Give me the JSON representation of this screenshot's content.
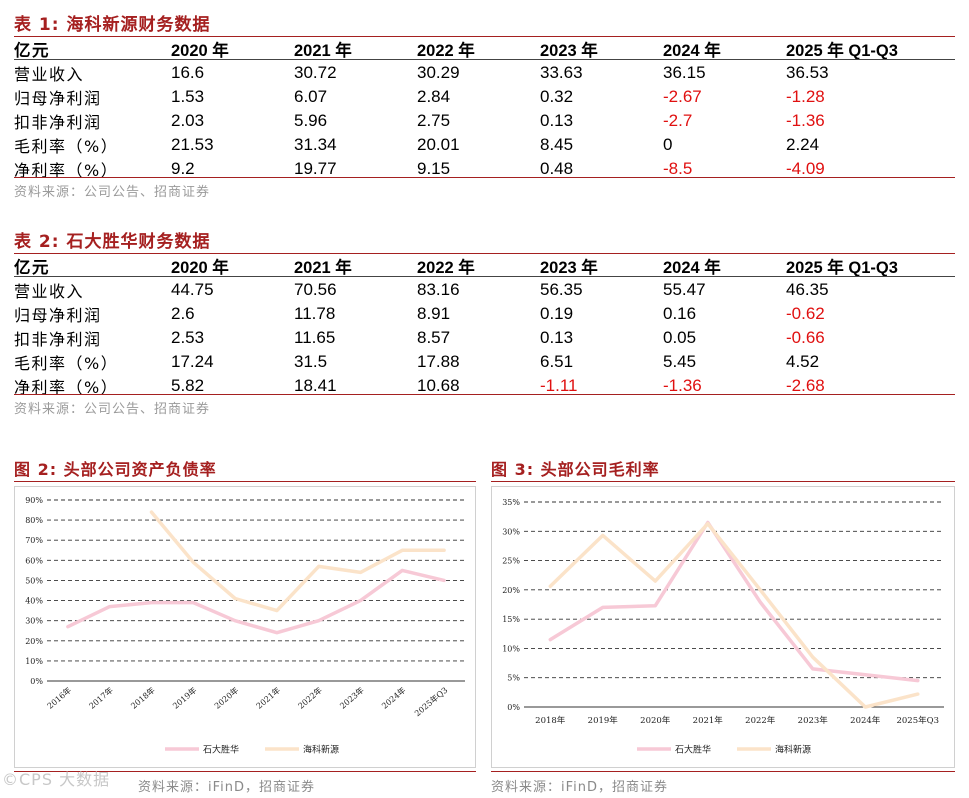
{
  "table1": {
    "title": "表 1:  海科新源财务数据",
    "headers": [
      "亿元",
      "2020 年",
      "2021 年",
      "2022 年",
      "2023 年",
      "2024 年",
      "2025 年 Q1-Q3"
    ],
    "rows": [
      {
        "label": "营业收入",
        "values": [
          "16.6",
          "30.72",
          "30.29",
          "33.63",
          "36.15",
          "36.53"
        ]
      },
      {
        "label": "归母净利润",
        "values": [
          "1.53",
          "6.07",
          "2.84",
          "0.32",
          "-2.67",
          "-1.28"
        ]
      },
      {
        "label": "扣非净利润",
        "values": [
          "2.03",
          "5.96",
          "2.75",
          "0.13",
          "-2.7",
          "-1.36"
        ]
      },
      {
        "label": "毛利率（%）",
        "values": [
          "21.53",
          "31.34",
          "20.01",
          "8.45",
          "0",
          "2.24"
        ]
      },
      {
        "label": "净利率（%）",
        "values": [
          "9.2",
          "19.77",
          "9.15",
          "0.48",
          "-8.5",
          "-4.09"
        ]
      }
    ],
    "source": "资料来源：公司公告、招商证券"
  },
  "table2": {
    "title": "表 2:  石大胜华财务数据",
    "headers": [
      "亿元",
      "2020 年",
      "2021 年",
      "2022 年",
      "2023 年",
      "2024 年",
      "2025 年 Q1-Q3"
    ],
    "rows": [
      {
        "label": "营业收入",
        "values": [
          "44.75",
          "70.56",
          "83.16",
          "56.35",
          "55.47",
          "46.35"
        ]
      },
      {
        "label": "归母净利润",
        "values": [
          "2.6",
          "11.78",
          "8.91",
          "0.19",
          "0.16",
          "-0.62"
        ]
      },
      {
        "label": "扣非净利润",
        "values": [
          "2.53",
          "11.65",
          "8.57",
          "0.13",
          "0.05",
          "-0.66"
        ]
      },
      {
        "label": "毛利率（%）",
        "values": [
          "17.24",
          "31.5",
          "17.88",
          "6.51",
          "5.45",
          "4.52"
        ]
      },
      {
        "label": "净利率（%）",
        "values": [
          "5.82",
          "18.41",
          "10.68",
          "-1.11",
          "-1.36",
          "-2.68"
        ]
      }
    ],
    "source": "资料来源：公司公告、招商证券"
  },
  "colors": {
    "accent": "#a52020",
    "negative": "#e01010",
    "series_a": "#f7c9d6",
    "series_b": "#fbe3c9",
    "grid": "#333333"
  },
  "chart_data": [
    {
      "type": "line",
      "title": "图 2:  头部公司资产负债率",
      "x": [
        "2016年",
        "2017年",
        "2018年",
        "2019年",
        "2020年",
        "2021年",
        "2022年",
        "2023年",
        "2024年",
        "2025年Q3"
      ],
      "yticks": [
        "0%",
        "10%",
        "20%",
        "30%",
        "40%",
        "50%",
        "60%",
        "70%",
        "80%",
        "90%"
      ],
      "ylim": [
        0,
        90
      ],
      "series": [
        {
          "name": "石大胜华",
          "values": [
            27,
            37,
            39,
            39,
            30,
            24,
            30,
            40,
            55,
            50
          ]
        },
        {
          "name": "海科新源",
          "values": [
            null,
            null,
            84,
            59,
            41,
            35,
            57,
            54,
            65,
            65
          ]
        }
      ],
      "source": "资料来源：iFinD，招商证券"
    },
    {
      "type": "line",
      "title": "图 3:  头部公司毛利率",
      "x": [
        "2018年",
        "2019年",
        "2020年",
        "2021年",
        "2022年",
        "2023年",
        "2024年",
        "2025年Q3"
      ],
      "yticks": [
        "0%",
        "5%",
        "10%",
        "15%",
        "20%",
        "25%",
        "30%",
        "35%"
      ],
      "ylim": [
        0,
        35
      ],
      "series": [
        {
          "name": "石大胜华",
          "values": [
            11.5,
            17,
            17.3,
            31.5,
            17.9,
            6.5,
            5.5,
            4.5
          ]
        },
        {
          "name": "海科新源",
          "values": [
            20.6,
            29.3,
            21.5,
            31.3,
            20,
            8.5,
            0,
            2.2
          ]
        }
      ],
      "source": "资料来源：iFinD，招商证券"
    }
  ],
  "watermark": "©CPS 大数据"
}
